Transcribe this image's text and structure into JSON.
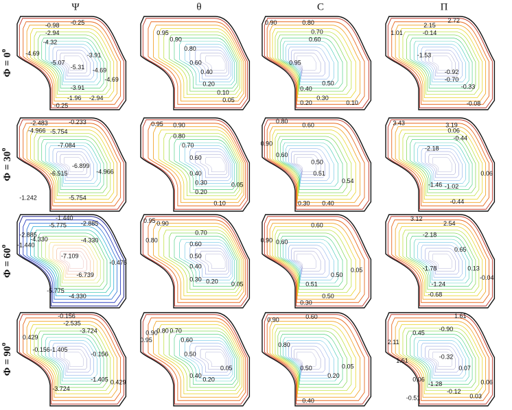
{
  "columns": [
    "Ψ",
    "θ",
    "C",
    "Π"
  ],
  "rows": [
    {
      "text": "Φ = 0",
      "sup": "o"
    },
    {
      "text": "Φ = 30",
      "sup": "o"
    },
    {
      "text": "Φ = 60",
      "sup": "o"
    },
    {
      "text": "Φ = 90",
      "sup": "o"
    }
  ],
  "panels": [
    {
      "labels": [
        "-0.98",
        "-0.25",
        "-2.94",
        "-4.32",
        "-4.69",
        "-5.07",
        "-5.31",
        "-3.91",
        "-4.69",
        "-4.69",
        "-3.91",
        "-1.96",
        "-2.94",
        "-0.25"
      ]
    },
    {
      "labels": [
        "0.95",
        "0.90",
        "0.80",
        "0.60",
        "0.40",
        "0.20",
        "0.10",
        "0.05"
      ]
    },
    {
      "labels": [
        "0.90",
        "0.80",
        "0.70",
        "0.60",
        "0.95",
        "0.50",
        "0.40",
        "0.30",
        "0.20",
        "0.10"
      ]
    },
    {
      "labels": [
        "2.72",
        "2.15",
        "1.01",
        "-0.14",
        "-1.53",
        "-0.92",
        "-0.70",
        "-0.33",
        "-0.08"
      ]
    },
    {
      "labels": [
        "-2.483",
        "-0.233",
        "-4.966",
        "-5.754",
        "-7.084",
        "-6.899",
        "-6.515",
        "-4.966",
        "-1.242",
        "-5.754"
      ]
    },
    {
      "labels": [
        "0.95",
        "0.90",
        "0.80",
        "0.70",
        "0.60",
        "0.40",
        "0.30",
        "0.20",
        "0.10",
        "0.05"
      ]
    },
    {
      "labels": [
        "0.80",
        "0.60",
        "0.90",
        "0.60",
        "0.50",
        "0.51",
        "0.54",
        "0.30",
        "0.40"
      ]
    },
    {
      "labels": [
        "3.43",
        "3.19",
        "0.06",
        "-0.44",
        "-2.18",
        "-1.46",
        "-1.02",
        "0.06",
        "-0.44"
      ]
    },
    {
      "labels": [
        "-1.440",
        "-2.885",
        "-5.775",
        "-2.885",
        "-4.330",
        "-1.440",
        "-4.330",
        "-7.109",
        "-0.476",
        "-6.739",
        "-5.775",
        "-4.330"
      ]
    },
    {
      "labels": [
        "0.95",
        "0.90",
        "0.80",
        "0.70",
        "0.60",
        "0.50",
        "0.40",
        "0.30",
        "0.20",
        "0.05"
      ]
    },
    {
      "labels": [
        "0.60",
        "0.90",
        "0.60",
        "0.51",
        "0.50",
        "0.05",
        "0.50",
        "0.30"
      ]
    },
    {
      "labels": [
        "3.12",
        "2.54",
        "-2.18",
        "0.65",
        "0.13",
        "-0.04",
        "-1.78",
        "-1.24",
        "-0.68"
      ]
    },
    {
      "labels": [
        "-0.156",
        "-2.535",
        "-3.724",
        "0.429",
        "-0.156",
        "-1.405",
        "-0.156",
        "-1.405",
        "0.429",
        "-3.724"
      ]
    },
    {
      "labels": [
        "0.90",
        "0.95",
        "0.80",
        "0.70",
        "0.60",
        "0.50",
        "0.40",
        "0.20",
        "0.05"
      ]
    },
    {
      "labels": [
        "0.90",
        "0.60",
        "0.80",
        "0.50",
        "0.20",
        "0.05",
        "0.40"
      ]
    },
    {
      "labels": [
        "1.61",
        "2.11",
        "0.45",
        "-0.90",
        "1.61",
        "-0.32",
        "0.07",
        "0.06",
        "-1.28",
        "-0.12",
        "0.06",
        "0.03",
        "-0.51"
      ]
    }
  ]
}
